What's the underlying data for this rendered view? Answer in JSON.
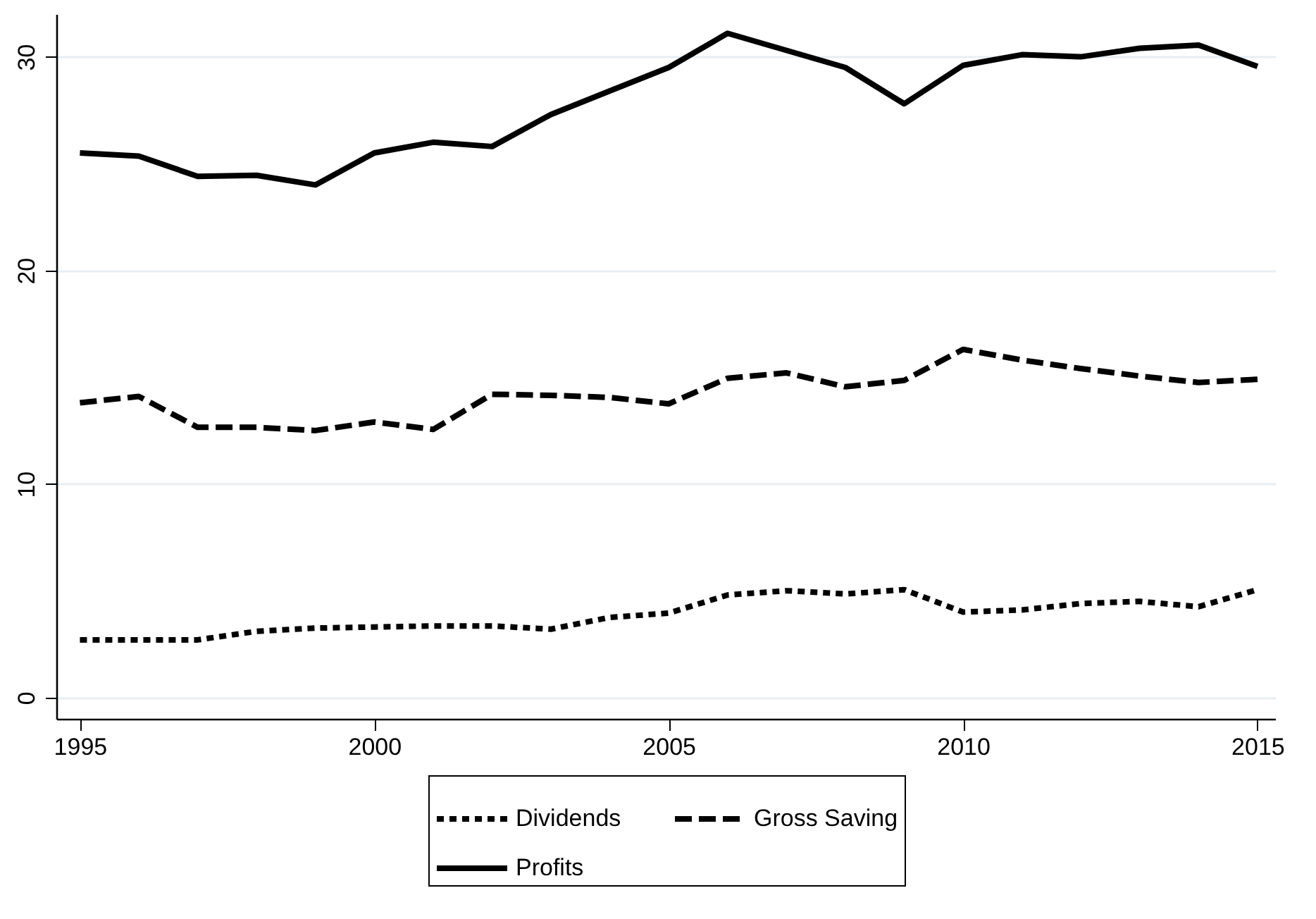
{
  "chart_data": {
    "type": "line",
    "x": [
      1995,
      1996,
      1997,
      1998,
      1999,
      2000,
      2001,
      2002,
      2003,
      2004,
      2005,
      2006,
      2007,
      2008,
      2009,
      2010,
      2011,
      2012,
      2013,
      2014,
      2015
    ],
    "series": [
      {
        "name": "Dividends",
        "color": "#000000",
        "line_style": "dotted",
        "values": [
          2.7,
          2.7,
          2.7,
          3.1,
          3.25,
          3.3,
          3.35,
          3.35,
          3.2,
          3.75,
          3.95,
          4.8,
          5.0,
          4.85,
          5.05,
          4.0,
          4.1,
          4.4,
          4.5,
          4.25,
          5.05
        ]
      },
      {
        "name": "Gross Saving",
        "color": "#000000",
        "line_style": "dashed",
        "values": [
          13.8,
          14.1,
          12.65,
          12.65,
          12.5,
          12.9,
          12.55,
          14.2,
          14.15,
          14.05,
          13.75,
          14.95,
          15.2,
          14.55,
          14.85,
          16.3,
          15.8,
          15.4,
          15.05,
          14.75,
          14.9
        ]
      },
      {
        "name": "Profits",
        "color": "#000000",
        "line_style": "solid",
        "values": [
          25.5,
          25.35,
          24.4,
          24.45,
          24.0,
          25.5,
          26.0,
          25.8,
          27.3,
          28.4,
          29.5,
          31.1,
          30.3,
          29.5,
          27.8,
          29.6,
          30.1,
          30.0,
          30.4,
          30.55,
          29.55
        ]
      }
    ],
    "xlim": [
      1994.6,
      2015.3
    ],
    "xticks": [
      1995,
      2000,
      2005,
      2010,
      2015
    ],
    "ylim": [
      -1,
      32
    ],
    "yticks": [
      0,
      10,
      20,
      30
    ],
    "grid": "y",
    "legend": "bottom",
    "marker": "none"
  }
}
